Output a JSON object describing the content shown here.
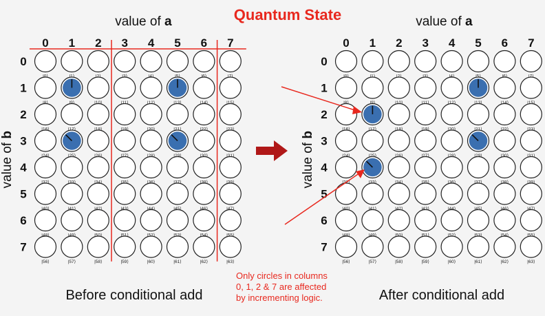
{
  "title": "Quantum State",
  "col_axis_label_prefix": "value of ",
  "col_axis_label_var": "a",
  "row_axis_label_prefix": "value of ",
  "row_axis_label_var": "b",
  "columns": [
    "0",
    "1",
    "2",
    "3",
    "4",
    "5",
    "6",
    "7"
  ],
  "rows": [
    "0",
    "1",
    "2",
    "3",
    "4",
    "5",
    "6",
    "7"
  ],
  "note_lines": [
    "Only circles in columns",
    "0, 1, 2 & 7 are affected",
    "by incrementing logic."
  ],
  "colors": {
    "title": "#e8281e",
    "annotation": "#e8281e",
    "filled": "#3a6fb0",
    "arrow": "#b01818"
  },
  "panels": [
    {
      "name": "before",
      "caption": "Before conditional add",
      "active": [
        {
          "index": 9,
          "phase_deg": 0
        },
        {
          "index": 13,
          "phase_deg": 0
        },
        {
          "index": 25,
          "phase_deg": -45
        },
        {
          "index": 29,
          "phase_deg": -45
        }
      ]
    },
    {
      "name": "after",
      "caption": "After conditional add",
      "active": [
        {
          "index": 17,
          "phase_deg": 0
        },
        {
          "index": 13,
          "phase_deg": 0
        },
        {
          "index": 33,
          "phase_deg": -45
        },
        {
          "index": 29,
          "phase_deg": -45
        }
      ]
    }
  ]
}
